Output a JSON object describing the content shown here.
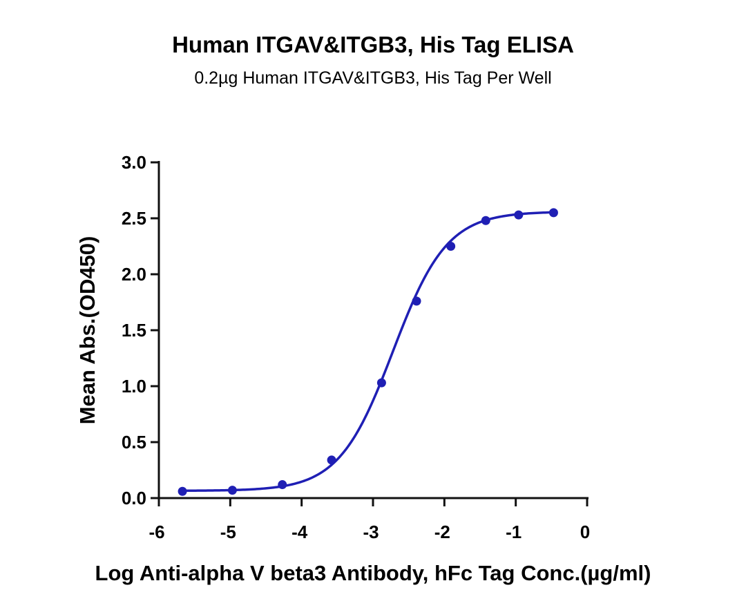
{
  "chart_data": {
    "type": "scatter",
    "title": "Human ITGAV&ITGB3, His Tag ELISA",
    "subtitle": "0.2µg Human ITGAV&ITGB3, His Tag Per Well",
    "xlabel": "Log Anti-alpha V beta3 Antibody, hFc Tag Conc.(µg/ml)",
    "ylabel": "Mean Abs.(OD450)",
    "xlim": [
      -6,
      0
    ],
    "ylim": [
      0,
      3.0
    ],
    "x_ticks": [
      "-6",
      "-5",
      "-4",
      "-3",
      "-2",
      "-1",
      "0"
    ],
    "y_ticks": [
      "0.0",
      "0.5",
      "1.0",
      "1.5",
      "2.0",
      "2.5",
      "3.0"
    ],
    "grid": false,
    "series": [
      {
        "color": "#1f1fb4",
        "points": [
          {
            "x": -5.67,
            "y": 0.06
          },
          {
            "x": -4.97,
            "y": 0.07
          },
          {
            "x": -4.27,
            "y": 0.12
          },
          {
            "x": -3.58,
            "y": 0.34
          },
          {
            "x": -2.88,
            "y": 1.03
          },
          {
            "x": -2.39,
            "y": 1.76
          },
          {
            "x": -1.91,
            "y": 2.25
          },
          {
            "x": -1.42,
            "y": 2.48
          },
          {
            "x": -0.96,
            "y": 2.53
          },
          {
            "x": -0.47,
            "y": 2.55
          }
        ],
        "fit": {
          "bottom": 0.065,
          "top": 2.56,
          "log_ec50": -2.72,
          "hill_slope": 1.15,
          "x_range": [
            -5.67,
            -0.47
          ]
        }
      }
    ]
  }
}
